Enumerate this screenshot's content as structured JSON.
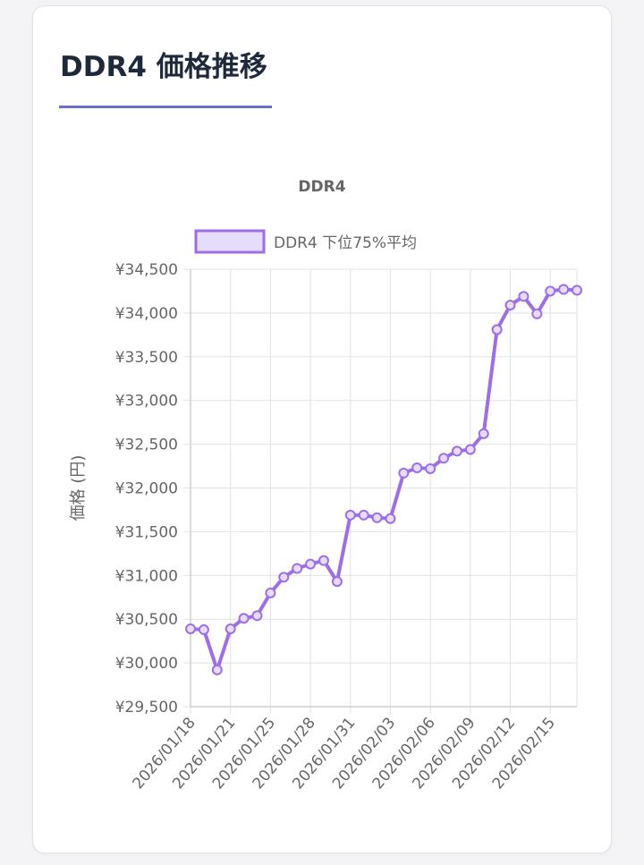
{
  "card": {
    "title": "DDR4 価格推移"
  },
  "colors": {
    "line": "#9d6ee8",
    "legend_fill": "#e6dcfb",
    "grid": "#e2e2e2",
    "text": "#666666",
    "title": "#1e293b",
    "accent": "#6b6fc4"
  },
  "chart_data": {
    "type": "line",
    "title": "DDR4",
    "ylabel": "価格 (円)",
    "xlabel": "",
    "legend_position": "top",
    "grid": true,
    "ylim": [
      29500,
      34500
    ],
    "y_ticks": [
      "¥34,500",
      "¥34,000",
      "¥33,500",
      "¥33,000",
      "¥32,500",
      "¥32,000",
      "¥31,500",
      "¥31,000",
      "¥30,500",
      "¥30,000",
      "¥29,500"
    ],
    "x_tick_labels": [
      "2026/01/18",
      "2026/01/21",
      "2026/01/25",
      "2026/01/28",
      "2026/01/31",
      "2026/02/03",
      "2026/02/06",
      "2026/02/09",
      "2026/02/12",
      "2026/02/15"
    ],
    "x_tick_indices": [
      0,
      3,
      6,
      9,
      12,
      15,
      18,
      21,
      24,
      27
    ],
    "series": [
      {
        "name": "DDR4 下位75%平均",
        "values": [
          30390,
          30380,
          29920,
          30390,
          30510,
          30540,
          30800,
          30980,
          31080,
          31130,
          31170,
          30930,
          31690,
          31690,
          31660,
          31650,
          32170,
          32230,
          32220,
          32340,
          32420,
          32440,
          32620,
          33810,
          34090,
          34190,
          33990,
          34250,
          34270,
          34260
        ]
      }
    ]
  }
}
